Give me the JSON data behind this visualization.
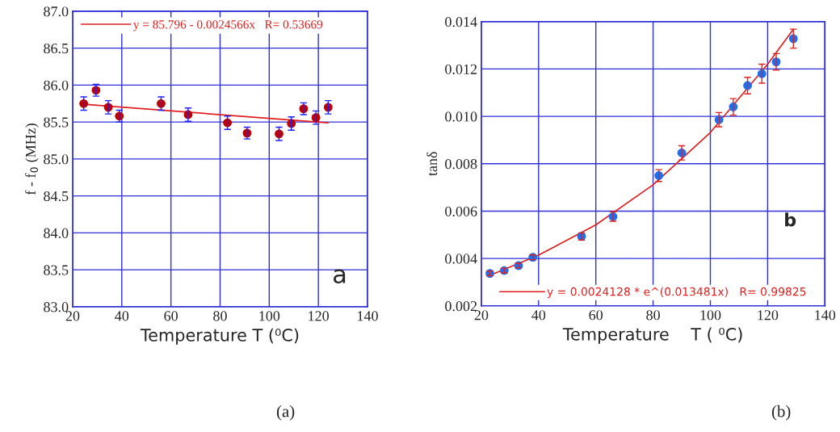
{
  "chart_data": [
    {
      "type": "scatter",
      "xlabel": "Temperature T (⁰C)",
      "ylabel": "f - f$_{0}$ (MHz)",
      "xlim": [
        20,
        140
      ],
      "ylim": [
        83.0,
        87.0
      ],
      "xticks": [
        20,
        40,
        60,
        80,
        100,
        120,
        140
      ],
      "yticks": [
        {
          "value": 83.0,
          "label": "83.0"
        },
        {
          "value": 83.5,
          "label": "83.5"
        },
        {
          "value": 84.0,
          "label": "84.0"
        },
        {
          "value": 84.5,
          "label": "84.5"
        },
        {
          "value": 85.0,
          "label": "85.0"
        },
        {
          "value": 85.5,
          "label": "85.5"
        },
        {
          "value": 86.0,
          "label": "86.0"
        },
        {
          "value": 86.5,
          "label": "86.5"
        },
        {
          "value": 87.0,
          "label": "87.0"
        }
      ],
      "grid": true,
      "legend": "top left",
      "annotations": [
        "a",
        "(a)"
      ],
      "series": [
        {
          "marker": "circle",
          "color": "#c00000",
          "x": [
            24.5,
            29.5,
            34.5,
            39,
            56,
            67,
            83,
            91,
            104,
            109,
            114,
            119,
            124
          ],
          "values": [
            85.75,
            85.93,
            85.7,
            85.58,
            85.75,
            85.6,
            85.49,
            85.35,
            85.34,
            85.48,
            85.68,
            85.56,
            85.7
          ],
          "errors": [
            0.09,
            0.08,
            0.09,
            0.08,
            0.09,
            0.09,
            0.09,
            0.08,
            0.09,
            0.09,
            0.08,
            0.09,
            0.09
          ]
        },
        {
          "type": "line",
          "name": "y = 85.796 - 0.0024566x   R= 0.53669",
          "color": "#e02020",
          "x": [
            24.5,
            124
          ],
          "values": [
            85.74,
            85.49
          ]
        }
      ]
    },
    {
      "type": "scatter",
      "xlabel": "Temperature    T ( ⁰C)",
      "ylabel": "tanδ",
      "xlim": [
        20,
        140
      ],
      "ylim": [
        0.002,
        0.014
      ],
      "xticks": [
        20,
        40,
        60,
        80,
        100,
        120,
        140
      ],
      "yticks": [
        {
          "value": 0.002,
          "label": "0.002"
        },
        {
          "value": 0.004,
          "label": "0.004"
        },
        {
          "value": 0.006,
          "label": "0.006"
        },
        {
          "value": 0.008,
          "label": "0.008"
        },
        {
          "value": 0.01,
          "label": "0.010"
        },
        {
          "value": 0.012,
          "label": "0.012"
        },
        {
          "value": 0.014,
          "label": "0.014"
        }
      ],
      "grid": true,
      "legend": "bottom",
      "annotations": [
        "b",
        "(b)"
      ],
      "series": [
        {
          "marker": "circle",
          "color": "#1e6ff0",
          "x": [
            23,
            28,
            33,
            38,
            55,
            66,
            82,
            90,
            103,
            108,
            113,
            118,
            123,
            129
          ],
          "values": [
            0.00337,
            0.00349,
            0.0037,
            0.00405,
            0.00493,
            0.00577,
            0.0075,
            0.00846,
            0.00986,
            0.0104,
            0.0113,
            0.0118,
            0.0123,
            0.01328
          ],
          "errors": [
            0.0001,
            0.0001,
            0.0001,
            0.0001,
            0.00015,
            0.0002,
            0.00025,
            0.0003,
            0.0003,
            0.00035,
            0.00035,
            0.0004,
            0.00035,
            0.0004
          ]
        },
        {
          "type": "line",
          "name": "y = 0.0024128 * e^(0.013481x)   R= 0.99825",
          "color": "#e02020",
          "x": [
            23,
            40,
            60,
            80,
            100,
            120,
            129
          ],
          "values": [
            0.00329,
            0.00414,
            0.00542,
            0.00711,
            0.00932,
            0.0122,
            0.01368
          ]
        }
      ]
    }
  ]
}
